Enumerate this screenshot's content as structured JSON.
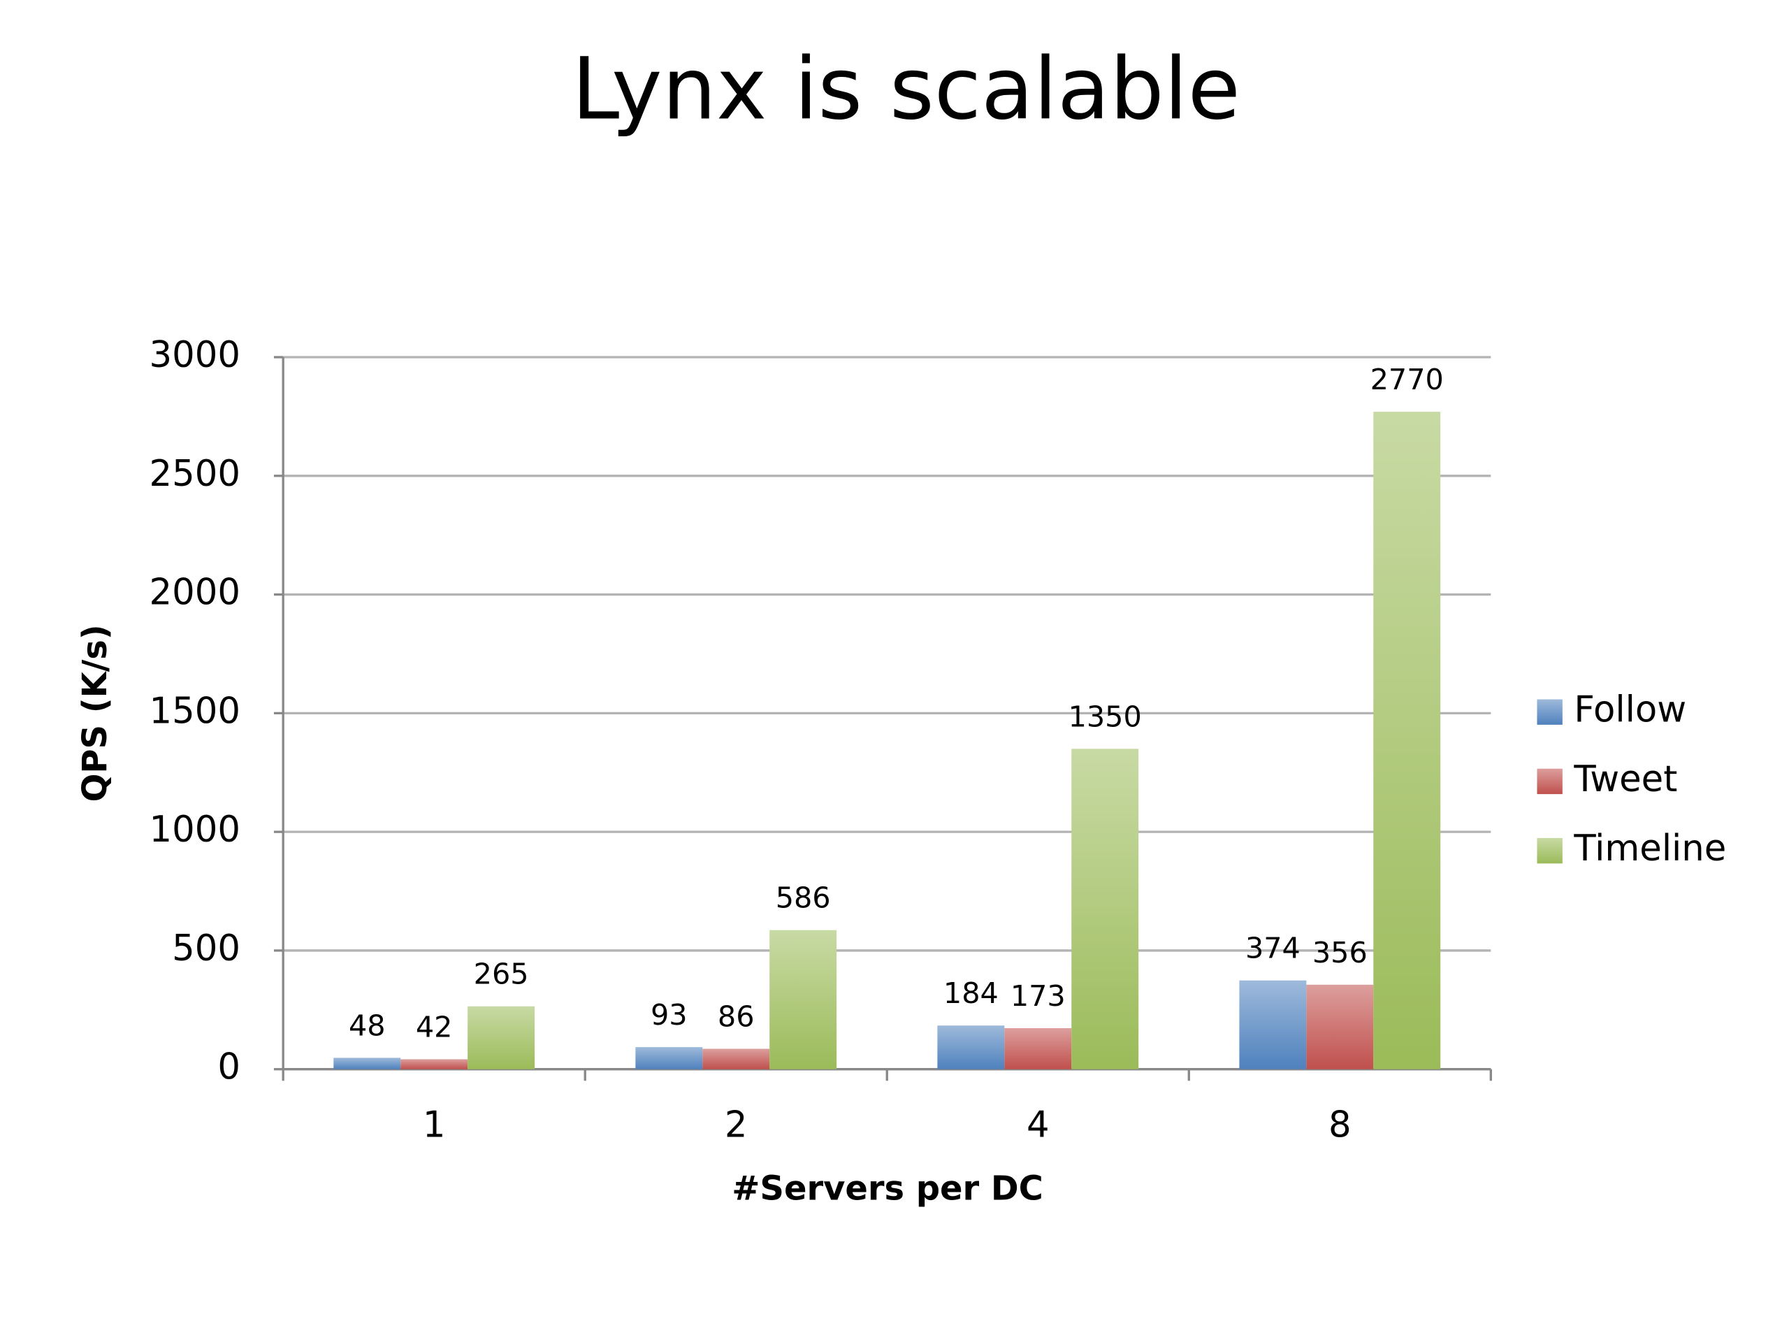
{
  "chart_data": {
    "type": "bar",
    "title": "Lynx is scalable",
    "x_label": "#Servers per DC",
    "y_label": "QPS  (K/s)",
    "categories": [
      "1",
      "2",
      "4",
      "8"
    ],
    "series": [
      {
        "name": "Follow",
        "color": "#4f81bd",
        "values": [
          48,
          93,
          184,
          374
        ]
      },
      {
        "name": "Tweet",
        "color": "#c0504d",
        "values": [
          42,
          86,
          173,
          356
        ]
      },
      {
        "name": "Timeline",
        "color": "#9bbb59",
        "values": [
          265,
          586,
          1350,
          2770
        ]
      }
    ],
    "ylim": [
      0,
      3000
    ],
    "yticks": [
      0,
      500,
      1000,
      1500,
      2000,
      2500,
      3000
    ],
    "grid": true,
    "legend": "right"
  }
}
